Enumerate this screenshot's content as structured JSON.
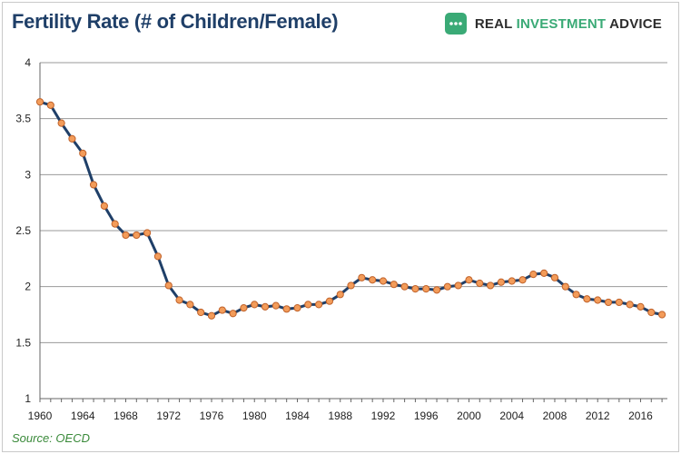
{
  "title": "Fertility Rate (# of Children/Female)",
  "logo": {
    "icon": "chat-bubble-icon",
    "part1": "REAL ",
    "part2": "INVESTMENT",
    "part3": " ADVICE",
    "color_icon": "#3aaa76"
  },
  "source": "Source: OECD",
  "colors": {
    "line": "#1f3f68",
    "marker_fill": "#f39c5a",
    "marker_stroke": "#c0622a",
    "grid": "#9a9a9a",
    "axis": "#666666"
  },
  "chart_data": {
    "type": "line",
    "xlabel": "",
    "ylabel": "",
    "xlim": [
      1960,
      2018.5
    ],
    "ylim": [
      1,
      4
    ],
    "yticks": [
      1,
      1.5,
      2,
      2.5,
      3,
      3.5,
      4
    ],
    "xticks": [
      1960,
      1964,
      1968,
      1972,
      1976,
      1980,
      1984,
      1988,
      1992,
      1996,
      2000,
      2004,
      2008,
      2012,
      2016
    ],
    "grid": true,
    "x": [
      1960,
      1961,
      1962,
      1963,
      1964,
      1965,
      1966,
      1967,
      1968,
      1969,
      1970,
      1971,
      1972,
      1973,
      1974,
      1975,
      1976,
      1977,
      1978,
      1979,
      1980,
      1981,
      1982,
      1983,
      1984,
      1985,
      1986,
      1987,
      1988,
      1989,
      1990,
      1991,
      1992,
      1993,
      1994,
      1995,
      1996,
      1997,
      1998,
      1999,
      2000,
      2001,
      2002,
      2003,
      2004,
      2005,
      2006,
      2007,
      2008,
      2009,
      2010,
      2011,
      2012,
      2013,
      2014,
      2015,
      2016,
      2017,
      2018
    ],
    "series": [
      {
        "values": [
          3.65,
          3.62,
          3.46,
          3.32,
          3.19,
          2.91,
          2.72,
          2.56,
          2.46,
          2.46,
          2.48,
          2.27,
          2.01,
          1.88,
          1.84,
          1.77,
          1.74,
          1.79,
          1.76,
          1.81,
          1.84,
          1.82,
          1.83,
          1.8,
          1.81,
          1.84,
          1.84,
          1.87,
          1.93,
          2.01,
          2.08,
          2.06,
          2.05,
          2.02,
          2.0,
          1.98,
          1.98,
          1.97,
          2.0,
          2.01,
          2.06,
          2.03,
          2.01,
          2.04,
          2.05,
          2.06,
          2.11,
          2.12,
          2.08,
          2.0,
          1.93,
          1.89,
          1.88,
          1.86,
          1.86,
          1.84,
          1.82,
          1.77,
          1.75
        ]
      }
    ]
  }
}
